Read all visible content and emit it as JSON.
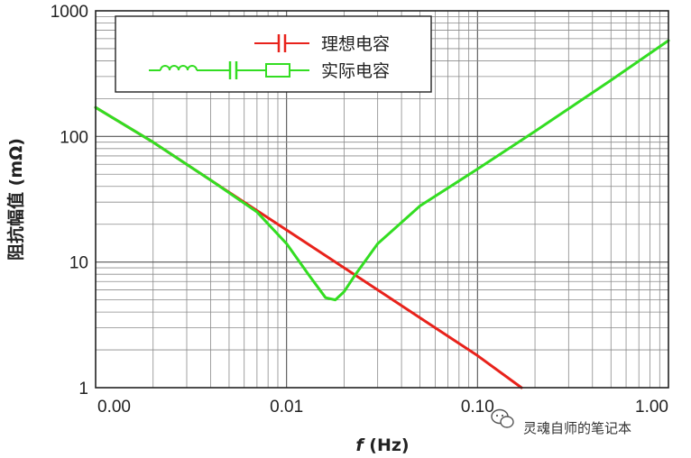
{
  "chart_data": {
    "type": "line",
    "title": "",
    "xlabel_italic": "f",
    "xlabel_unit": " (Hz)",
    "ylabel": "阻抗幅值 (mΩ)",
    "yscale": "log",
    "ylim": [
      1,
      1000
    ],
    "y_ticks": [
      "1",
      "10",
      "100",
      "1000"
    ],
    "x_ticks": [
      "0.00",
      "0.01",
      "0.10",
      "1.00"
    ],
    "xlim_decades": [
      -3,
      0
    ],
    "grid": true,
    "legend_position": "top-left",
    "series": [
      {
        "name": "理想电容",
        "color": "#e8221b",
        "x": [
          0.001,
          0.002,
          0.005,
          0.01,
          0.02,
          0.05,
          0.1,
          0.17
        ],
        "y": [
          170,
          90,
          36,
          18,
          9,
          3.6,
          1.8,
          1.0
        ]
      },
      {
        "name": "实际电容",
        "color": "#33dd22",
        "x": [
          0.001,
          0.002,
          0.004,
          0.007,
          0.01,
          0.013,
          0.016,
          0.018,
          0.02,
          0.023,
          0.03,
          0.05,
          0.1,
          0.2,
          0.5,
          1.0
        ],
        "y": [
          170,
          90,
          45,
          25,
          14,
          8,
          5.2,
          5.0,
          5.8,
          8,
          14,
          28,
          55,
          110,
          280,
          580
        ]
      }
    ]
  },
  "legend": {
    "items": [
      "理想电容",
      "实际电容"
    ]
  },
  "watermark": {
    "text": "灵魂自师的笔记本",
    "icon": "wechat-icon"
  }
}
